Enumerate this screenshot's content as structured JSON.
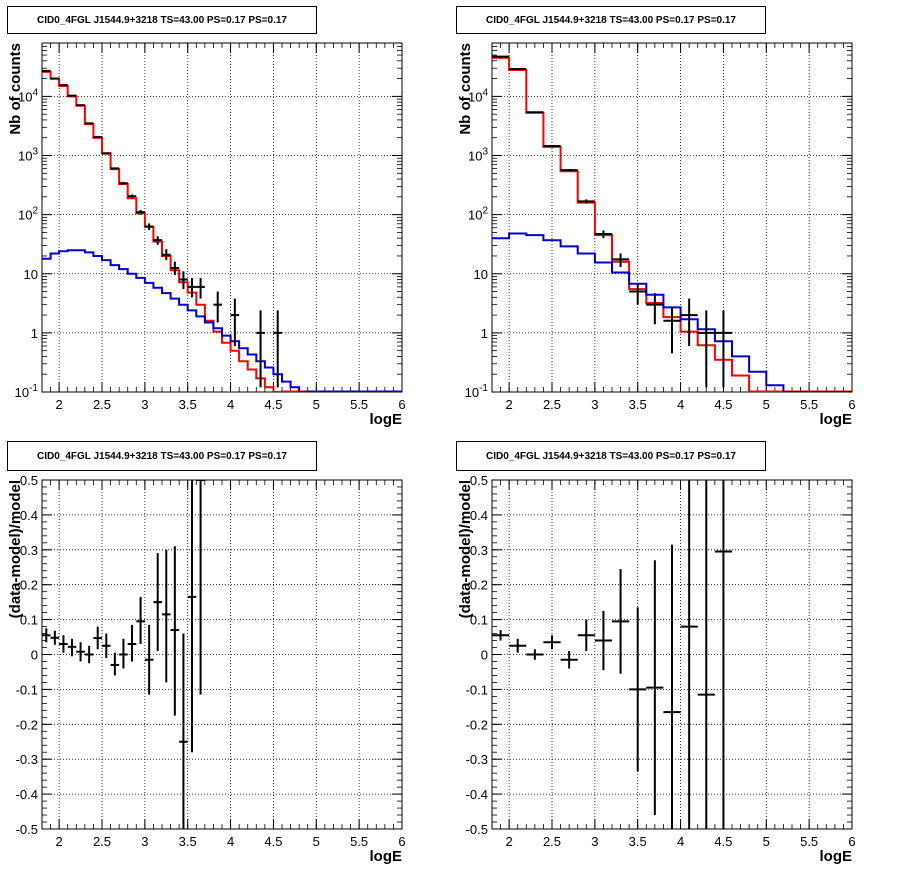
{
  "chart_data": [
    {
      "type": "histogram",
      "title": "CID0_4FGL J1544.9+3218 TS=43.00 PS=0.17 PS=0.17",
      "xlabel": "logE",
      "ylabel": "Nb of counts",
      "xlim": [
        1.8,
        6.0
      ],
      "ylim": [
        0.1,
        80000
      ],
      "yscale": "log",
      "grid": true,
      "xticks": [
        "2",
        "2.5",
        "3",
        "3.5",
        "4",
        "4.5",
        "5",
        "5.5",
        "6"
      ],
      "yticks": [
        "10^-1",
        "1",
        "10",
        "10^2",
        "10^3",
        "10^4"
      ],
      "bin_width": 0.1,
      "bin_edges_start": 1.8,
      "series": [
        {
          "color": "#ff0000",
          "values": [
            26000,
            20000,
            15000,
            10000,
            7000,
            3400,
            2000,
            1100,
            590,
            330,
            190,
            105,
            62,
            35,
            20,
            11.5,
            7.2,
            4.8,
            3.0,
            1.6,
            1.05,
            0.68,
            0.5,
            0.33,
            0.24,
            0.17,
            0.12,
            0.1
          ]
        },
        {
          "color": "#0000cc",
          "values": [
            18,
            22,
            24,
            25,
            25,
            23,
            20,
            17,
            14,
            12,
            10,
            8.5,
            7,
            5.8,
            4.7,
            3.8,
            3.0,
            2.4,
            1.9,
            1.5,
            1.2,
            0.9,
            0.72,
            0.55,
            0.43,
            0.33,
            0.26,
            0.2,
            0.15,
            0.12,
            0.1
          ]
        }
      ],
      "points": {
        "color": "#000000",
        "x": [
          1.85,
          1.95,
          2.05,
          2.15,
          2.25,
          2.35,
          2.45,
          2.55,
          2.65,
          2.75,
          2.85,
          2.95,
          3.05,
          3.15,
          3.25,
          3.35,
          3.45,
          3.55,
          3.65,
          3.85,
          4.05,
          4.35,
          4.55
        ],
        "y": [
          27000,
          20000,
          15500,
          10300,
          7100,
          3500,
          2050,
          1080,
          605,
          340,
          205,
          110,
          63,
          37,
          21,
          12.5,
          8,
          6,
          6,
          3,
          2,
          1,
          1
        ],
        "ylo": [
          26500,
          19800,
          15300,
          10200,
          7000,
          3450,
          2000,
          1040,
          580,
          322,
          191,
          100,
          55,
          31,
          17,
          9.5,
          5.5,
          4,
          3.8,
          1.5,
          0.6,
          0.12,
          0.12
        ],
        "yhi": [
          27500,
          20200,
          15700,
          10400,
          7200,
          3560,
          2100,
          1120,
          630,
          358,
          219,
          120,
          71,
          43,
          26,
          16,
          11,
          8.5,
          8.5,
          5,
          3.8,
          2.4,
          2.4
        ]
      }
    },
    {
      "type": "histogram",
      "title": "CID0_4FGL J1544.9+3218 TS=43.00 PS=0.17 PS=0.17",
      "xlabel": "logE",
      "ylabel": "Nb of counts",
      "xlim": [
        1.8,
        6.0
      ],
      "ylim": [
        0.1,
        80000
      ],
      "yscale": "log",
      "grid": true,
      "xticks": [
        "2",
        "2.5",
        "3",
        "3.5",
        "4",
        "4.5",
        "5",
        "5.5",
        "6"
      ],
      "yticks": [
        "10^-1",
        "1",
        "10",
        "10^2",
        "10^3",
        "10^4"
      ],
      "bin_width": 0.2,
      "bin_edges_start": 1.8,
      "series": [
        {
          "color": "#ff0000",
          "values": [
            45000,
            28000,
            5300,
            1400,
            540,
            160,
            45,
            16,
            5.5,
            3.2,
            1.85,
            1.05,
            0.62,
            0.35,
            0.19
          ]
        },
        {
          "color": "#0000cc",
          "values": [
            40,
            48,
            45,
            37,
            29,
            22,
            15.5,
            10.5,
            6.8,
            4.4,
            2.7,
            1.7,
            1.15,
            0.72,
            0.4,
            0.22,
            0.13,
            0.1,
            0.1,
            0.1,
            0.1
          ]
        }
      ],
      "points": {
        "color": "#000000",
        "x": [
          1.9,
          2.1,
          2.3,
          2.5,
          2.7,
          2.9,
          3.1,
          3.3,
          3.5,
          3.7,
          3.9,
          4.1,
          4.3,
          4.5
        ],
        "y": [
          47000,
          29000,
          5400,
          1450,
          565,
          168,
          47,
          17.5,
          5,
          3,
          1.6,
          2,
          1,
          1
        ],
        "ylo": [
          46500,
          28700,
          5330,
          1410,
          541,
          155,
          40,
          13,
          3,
          1.4,
          0.45,
          0.6,
          0.12,
          0.12
        ],
        "yhi": [
          47500,
          29300,
          5470,
          1490,
          589,
          181,
          54,
          22,
          7,
          4.7,
          2.8,
          3.8,
          2.4,
          2.4
        ]
      }
    },
    {
      "type": "scatter",
      "title": "CID0_4FGL J1544.9+3218 TS=43.00 PS=0.17 PS=0.17",
      "xlabel": "logE",
      "ylabel": "(data-model)/model",
      "xlim": [
        1.8,
        6.0
      ],
      "ylim": [
        -0.5,
        0.5
      ],
      "grid": true,
      "xticks": [
        "2",
        "2.5",
        "3",
        "3.5",
        "4",
        "4.5",
        "5",
        "5.5",
        "6"
      ],
      "yticks": [
        "-0.5",
        "-0.4",
        "-0.3",
        "-0.2",
        "-0.1",
        "0",
        "0.1",
        "0.2",
        "0.3",
        "0.4",
        "0.5"
      ],
      "bin_width": 0.1,
      "points": {
        "color": "#000000",
        "x": [
          1.85,
          1.95,
          2.05,
          2.15,
          2.25,
          2.35,
          2.45,
          2.55,
          2.65,
          2.75,
          2.85,
          2.95,
          3.05,
          3.15,
          3.25,
          3.35,
          3.45,
          3.55,
          3.65
        ],
        "y": [
          0.055,
          0.048,
          0.03,
          0.022,
          0.008,
          0.0,
          0.047,
          0.025,
          -0.03,
          0.0,
          0.03,
          0.095,
          -0.015,
          0.15,
          0.115,
          0.07,
          -0.25,
          0.165,
          0.5
        ],
        "ylo": [
          0.035,
          0.028,
          0.005,
          -0.005,
          -0.02,
          -0.025,
          0.015,
          -0.01,
          -0.06,
          -0.04,
          -0.02,
          0.03,
          -0.115,
          0.01,
          -0.08,
          -0.175,
          -0.55,
          -0.28,
          -0.115
        ],
        "yhi": [
          0.075,
          0.068,
          0.055,
          0.045,
          0.035,
          0.025,
          0.08,
          0.06,
          0.005,
          0.045,
          0.085,
          0.165,
          0.085,
          0.29,
          0.3,
          0.31,
          0.06,
          0.55,
          0.55
        ]
      }
    },
    {
      "type": "scatter",
      "title": "CID0_4FGL J1544.9+3218 TS=43.00 PS=0.17 PS=0.17",
      "xlabel": "logE",
      "ylabel": "(data-model)/model",
      "xlim": [
        1.8,
        6.0
      ],
      "ylim": [
        -0.5,
        0.5
      ],
      "grid": true,
      "xticks": [
        "2",
        "2.5",
        "3",
        "3.5",
        "4",
        "4.5",
        "5",
        "5.5",
        "6"
      ],
      "yticks": [
        "-0.5",
        "-0.4",
        "-0.3",
        "-0.2",
        "-0.1",
        "0",
        "0.1",
        "0.2",
        "0.3",
        "0.4",
        "0.5"
      ],
      "bin_width": 0.2,
      "points": {
        "color": "#000000",
        "x": [
          1.9,
          2.1,
          2.3,
          2.5,
          2.7,
          2.9,
          3.1,
          3.3,
          3.5,
          3.7,
          3.9,
          4.1,
          4.3,
          4.5
        ],
        "y": [
          0.055,
          0.025,
          0.0,
          0.035,
          -0.015,
          0.055,
          0.04,
          0.095,
          -0.1,
          -0.095,
          -0.165,
          0.08,
          -0.115,
          0.295
        ],
        "ylo": [
          0.04,
          0.005,
          -0.015,
          0.015,
          -0.04,
          0.01,
          -0.045,
          -0.055,
          -0.335,
          -0.46,
          -0.55,
          -0.55,
          -0.55,
          -0.55
        ],
        "yhi": [
          0.07,
          0.045,
          0.015,
          0.055,
          0.01,
          0.1,
          0.125,
          0.245,
          0.135,
          0.27,
          0.315,
          0.55,
          0.55,
          0.55
        ]
      }
    }
  ]
}
